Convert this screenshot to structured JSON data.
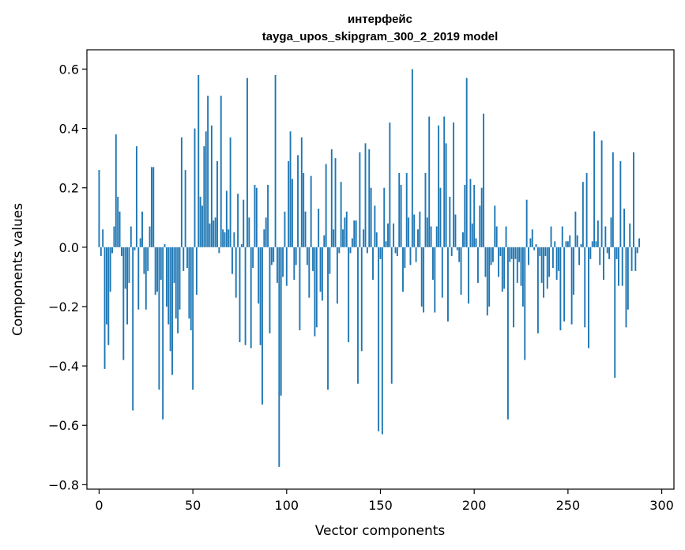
{
  "chart_data": {
    "type": "bar",
    "title": "интерфейс\ntayga_upos_skipgram_300_2_2019 model",
    "title_lines": [
      "интерфейс",
      "tayga_upos_skipgram_300_2_2019 model"
    ],
    "xlabel": "Vector components",
    "ylabel": "Components values",
    "xlim": [
      -6.5,
      306.5
    ],
    "ylim": [
      -0.815,
      0.665
    ],
    "xticks": [
      0,
      50,
      100,
      150,
      200,
      250,
      300
    ],
    "xtick_labels": [
      "0",
      "50",
      "100",
      "150",
      "200",
      "250",
      "300"
    ],
    "yticks": [
      -0.8,
      -0.6,
      -0.4,
      -0.2,
      0.0,
      0.2,
      0.4,
      0.6
    ],
    "ytick_labels": [
      "−0.8",
      "−0.6",
      "−0.4",
      "−0.2",
      "0.0",
      "0.2",
      "0.4",
      "0.6"
    ],
    "grid": false,
    "bar_color": "#1f77b4",
    "series": [
      {
        "values": [
          0.26,
          -0.03,
          0.06,
          -0.41,
          -0.26,
          -0.33,
          -0.15,
          -0.02,
          0.07,
          0.38,
          0.17,
          0.12,
          -0.03,
          -0.38,
          -0.14,
          -0.26,
          -0.12,
          0.07,
          -0.55,
          -0.01,
          0.34,
          -0.21,
          0.03,
          0.12,
          -0.09,
          -0.21,
          -0.08,
          0.07,
          0.27,
          0.27,
          -0.16,
          -0.15,
          -0.48,
          -0.11,
          -0.58,
          0.01,
          -0.2,
          -0.26,
          -0.35,
          -0.43,
          -0.12,
          -0.24,
          -0.29,
          -0.21,
          0.37,
          -0.08,
          0.26,
          -0.07,
          -0.24,
          -0.28,
          -0.48,
          0.4,
          -0.16,
          0.58,
          0.17,
          0.14,
          0.34,
          0.39,
          0.51,
          0.08,
          0.41,
          0.09,
          0.1,
          0.29,
          -0.02,
          0.51,
          0.06,
          0.05,
          0.19,
          0.06,
          0.37,
          -0.09,
          0.05,
          -0.17,
          0.18,
          -0.32,
          0.01,
          0.16,
          -0.33,
          0.57,
          0.1,
          -0.34,
          -0.07,
          0.21,
          0.2,
          -0.19,
          -0.33,
          -0.53,
          0.06,
          0.1,
          0.21,
          -0.29,
          -0.06,
          -0.05,
          0.58,
          -0.12,
          -0.74,
          -0.5,
          -0.1,
          0.12,
          -0.13,
          0.29,
          0.39,
          0.23,
          -0.11,
          -0.06,
          0.31,
          -0.28,
          0.37,
          0.25,
          0.12,
          -0.06,
          -0.17,
          0.24,
          -0.08,
          -0.3,
          -0.27,
          0.13,
          -0.15,
          -0.18,
          0.04,
          0.28,
          -0.48,
          -0.09,
          0.33,
          0.06,
          0.3,
          -0.19,
          -0.02,
          0.22,
          0.06,
          0.1,
          0.12,
          -0.32,
          -0.02,
          0.03,
          0.09,
          0.09,
          -0.46,
          0.32,
          -0.35,
          0.06,
          0.35,
          -0.02,
          0.33,
          0.2,
          -0.11,
          0.14,
          0.05,
          -0.62,
          -0.04,
          -0.63,
          0.2,
          0.02,
          0.08,
          0.42,
          -0.46,
          0.08,
          -0.02,
          -0.03,
          0.25,
          0.21,
          -0.15,
          -0.07,
          0.25,
          0.1,
          -0.06,
          0.6,
          0.11,
          -0.05,
          0.06,
          0.12,
          -0.2,
          -0.22,
          0.25,
          0.1,
          0.44,
          0.07,
          -0.11,
          -0.22,
          0.07,
          0.41,
          0.2,
          -0.17,
          0.44,
          0.35,
          -0.25,
          0.17,
          -0.03,
          0.42,
          0.11,
          -0.01,
          -0.05,
          -0.16,
          0.05,
          0.21,
          0.57,
          -0.19,
          0.23,
          0.08,
          0.21,
          0.03,
          -0.12,
          0.14,
          0.2,
          0.45,
          -0.1,
          -0.23,
          -0.2,
          -0.06,
          -0.05,
          0.14,
          0.07,
          -0.1,
          -0.03,
          -0.15,
          -0.14,
          0.07,
          -0.58,
          -0.05,
          -0.04,
          -0.27,
          -0.04,
          -0.12,
          -0.05,
          -0.13,
          -0.2,
          -0.38,
          0.16,
          -0.06,
          0.03,
          0.06,
          -0.01,
          0.01,
          -0.29,
          -0.03,
          -0.12,
          -0.17,
          -0.03,
          -0.14,
          -0.1,
          0.07,
          -0.07,
          0.02,
          -0.11,
          -0.08,
          -0.28,
          0.07,
          -0.25,
          0.02,
          0.02,
          0.04,
          -0.26,
          -0.16,
          0.12,
          0.04,
          -0.06,
          0.01,
          0.22,
          -0.27,
          0.25,
          -0.34,
          -0.04,
          0.02,
          0.39,
          0.02,
          0.09,
          -0.06,
          0.36,
          -0.11,
          0.07,
          -0.02,
          -0.04,
          0.1,
          0.32,
          -0.44,
          -0.04,
          -0.13,
          0.29,
          -0.13,
          0.13,
          -0.27,
          -0.21,
          0.08,
          -0.08,
          0.32,
          -0.08,
          -0.02,
          0.03
        ]
      }
    ]
  }
}
